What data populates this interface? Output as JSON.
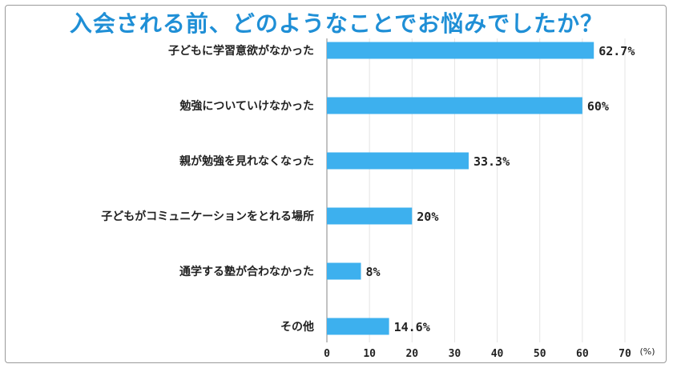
{
  "chart_data": {
    "type": "bar",
    "orientation": "horizontal",
    "title": "入会される前、どのようなことでお悩みでしたか？",
    "categories": [
      "子どもに学習意欲がなかった",
      "勉強についていけなかった",
      "親が勉強を見れなくなった",
      "子どもがコミュニケーションをとれる場所",
      "通学する塾が合わなかった",
      "その他"
    ],
    "values": [
      62.7,
      60,
      33.3,
      20,
      8,
      14.6
    ],
    "value_labels": [
      "62.7%",
      "60%",
      "33.3%",
      "20%",
      "8%",
      "14.6%"
    ],
    "xlim": [
      0,
      70
    ],
    "xticks": [
      0,
      10,
      20,
      30,
      40,
      50,
      60,
      70
    ],
    "xunit": "(%)",
    "grid": true,
    "bar_color": "#3db0ee",
    "title_color": "#1f8fd6"
  }
}
